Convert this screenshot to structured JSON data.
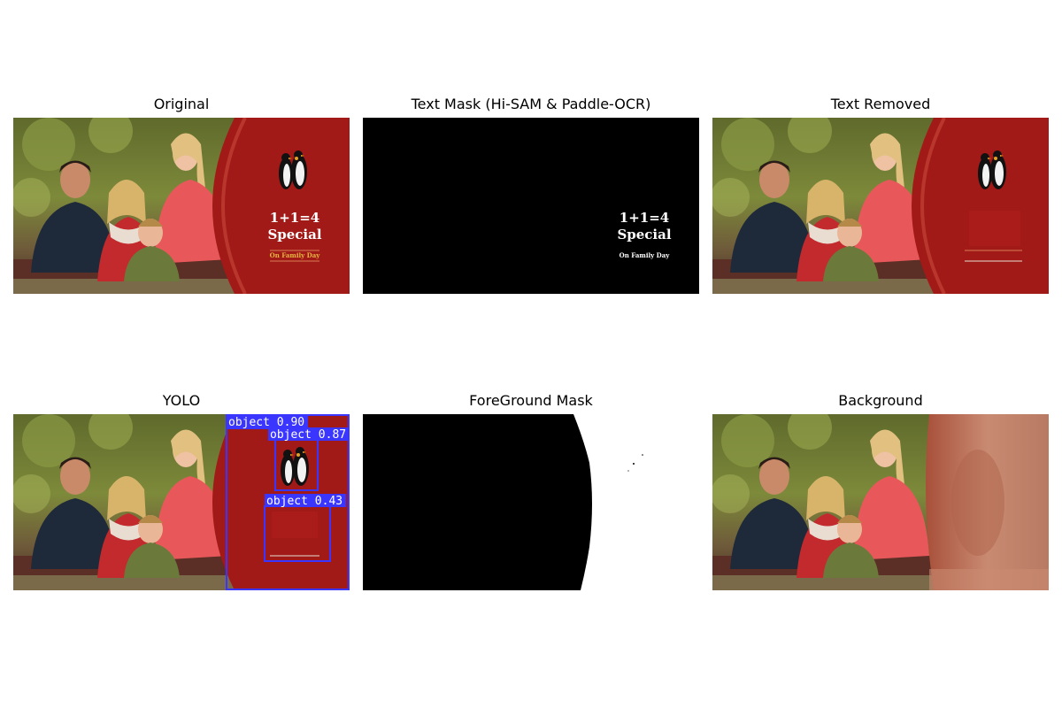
{
  "panels": {
    "original": {
      "title": "Original"
    },
    "text_mask": {
      "title": "Text Mask (Hi-SAM & Paddle-OCR)"
    },
    "text_removed": {
      "title": "Text Removed"
    },
    "yolo": {
      "title": "YOLO"
    },
    "foreground_mask": {
      "title": "ForeGround Mask"
    },
    "background": {
      "title": "Background"
    }
  },
  "poster": {
    "headline_1": "1+1=4",
    "headline_2": "Special",
    "tagline": "On Family Day"
  },
  "detections": [
    {
      "label": "object 0.90"
    },
    {
      "label": "object 0.87"
    },
    {
      "label": "object 0.43"
    }
  ],
  "colors": {
    "poster_red": "#a11a17",
    "detection_blue": "#3b36ff",
    "tagline_gold": "#e8b540",
    "mask_black": "#000000",
    "mask_white": "#ffffff"
  },
  "icons": [
    "penguin-illustration"
  ]
}
